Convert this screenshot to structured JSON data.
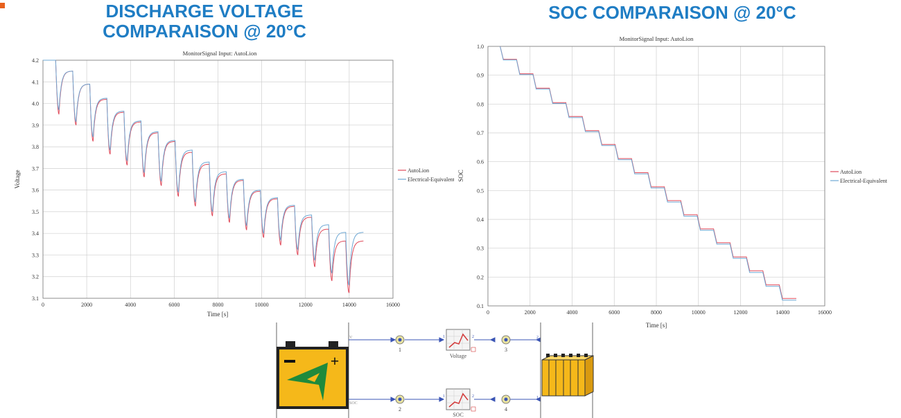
{
  "slide": {
    "title_left": "DISCHARGE VOLTAGE COMPARAISON @ 20°C",
    "title_right": "SOC COMPARAISON @ 20°C",
    "accent_color": "#1f7dc4"
  },
  "chart_data": [
    {
      "type": "line",
      "title": "MonitorSignal Input: AutoLion",
      "xlabel": "Time [s]",
      "ylabel": "Voltage",
      "xlim": [
        0,
        16000
      ],
      "ylim": [
        3.1,
        4.2
      ],
      "xticks": [
        "0",
        "2000",
        "4000",
        "6000",
        "8000",
        "10000",
        "12000",
        "14000",
        "16000"
      ],
      "yticks": [
        "3.1",
        "3.2",
        "3.3",
        "3.4",
        "3.5",
        "3.6",
        "3.7",
        "3.8",
        "3.9",
        "4.0",
        "4.1",
        "4.2"
      ],
      "grid": true,
      "legend": "right",
      "pulse_start": 580,
      "pulse_period": 780,
      "pulse_duration": 150,
      "series": [
        {
          "name": "AutoLion",
          "color": "#e04a5a",
          "rest": [
            4.15,
            4.09,
            4.02,
            3.96,
            3.915,
            3.865,
            3.825,
            3.775,
            3.72,
            3.675,
            3.645,
            3.595,
            3.56,
            3.525,
            3.475,
            3.42,
            3.365
          ],
          "min": [
            3.95,
            3.9,
            3.825,
            3.765,
            3.715,
            3.66,
            3.62,
            3.57,
            3.525,
            3.48,
            3.45,
            3.415,
            3.38,
            3.345,
            3.3,
            3.245,
            3.18,
            3.125
          ]
        },
        {
          "name": "Electrical-Equivalent",
          "color": "#6fa8d4",
          "rest": [
            4.15,
            4.09,
            4.025,
            3.965,
            3.92,
            3.87,
            3.83,
            3.785,
            3.73,
            3.685,
            3.65,
            3.6,
            3.565,
            3.53,
            3.485,
            3.44,
            3.405
          ],
          "min": [
            3.97,
            3.915,
            3.845,
            3.785,
            3.735,
            3.68,
            3.64,
            3.59,
            3.545,
            3.5,
            3.47,
            3.435,
            3.4,
            3.37,
            3.325,
            3.275,
            3.215,
            3.16
          ]
        }
      ]
    },
    {
      "type": "line",
      "title": "MonitorSignal Input: AutoLion",
      "xlabel": "Time [s]",
      "ylabel": "SOC",
      "xlim": [
        0,
        16000
      ],
      "ylim": [
        0.1,
        1.0
      ],
      "xticks": [
        "0",
        "2000",
        "4000",
        "6000",
        "8000",
        "10000",
        "12000",
        "14000",
        "16000"
      ],
      "yticks": [
        "0.1",
        "0.2",
        "0.3",
        "0.4",
        "0.5",
        "0.6",
        "0.7",
        "0.8",
        "0.9",
        "1.0"
      ],
      "grid": true,
      "legend": "right",
      "pulse_start": 580,
      "pulse_period": 780,
      "pulse_duration": 150,
      "series": [
        {
          "name": "AutoLion",
          "color": "#e04a5a",
          "levels": [
            1.0,
            0.955,
            0.905,
            0.855,
            0.805,
            0.757,
            0.708,
            0.66,
            0.611,
            0.562,
            0.513,
            0.465,
            0.416,
            0.367,
            0.319,
            0.27,
            0.222,
            0.173,
            0.126
          ]
        },
        {
          "name": "Electrical-Equivalent",
          "color": "#6fa8d4",
          "levels": [
            1.0,
            0.953,
            0.902,
            0.852,
            0.802,
            0.753,
            0.704,
            0.656,
            0.607,
            0.558,
            0.509,
            0.46,
            0.411,
            0.362,
            0.314,
            0.265,
            0.216,
            0.168,
            0.12
          ]
        }
      ]
    }
  ],
  "diagram": {
    "port_v": "V",
    "port_soc": "SOC",
    "monitor_voltage": "Voltage",
    "monitor_soc": "SOC",
    "link_1": "1",
    "link_2": "2",
    "link_3": "3",
    "link_4": "4",
    "port_1a": "1",
    "port_1b": "1",
    "port_2a": "2",
    "port_2b": "2",
    "port_r2": "2",
    "port_r1": "1",
    "battery_color": "#f5b81a",
    "link_color": "#3a54b4"
  }
}
